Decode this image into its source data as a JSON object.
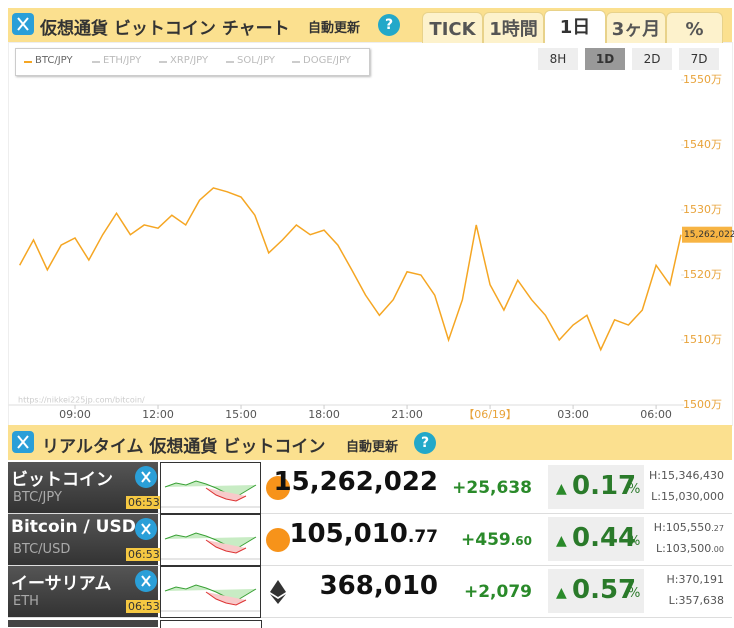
{
  "header": {
    "title": "仮想通貨 ビットコイン チャート",
    "auto_update": "自動更新",
    "help": "?",
    "tabs": [
      "TICK",
      "1時間",
      "1日",
      "3ヶ月",
      "%"
    ]
  },
  "chart_data": {
    "type": "line",
    "series": [
      {
        "name": "BTC/JPY",
        "color": "#f5a623",
        "x": [
          7,
          7.5,
          8,
          8.5,
          9,
          9.5,
          10,
          10.5,
          11,
          11.5,
          12,
          12.5,
          13,
          13.5,
          14,
          14.5,
          15,
          15.5,
          16,
          16.5,
          17,
          17.5,
          18,
          18.5,
          19,
          19.5,
          20,
          20.5,
          21,
          21.5,
          22,
          22.5,
          23,
          23.5,
          24,
          24.5,
          25,
          25.5,
          26,
          26.5,
          27,
          27.5,
          28,
          28.5,
          29,
          29.5,
          30,
          30.5,
          30.9
        ],
        "values": [
          1521.5,
          1525.4,
          1520.8,
          1524.6,
          1525.7,
          1522.3,
          1526.2,
          1529.5,
          1526.2,
          1527.7,
          1527.2,
          1529.2,
          1527.7,
          1531.5,
          1533.4,
          1532.8,
          1532,
          1529.2,
          1523.4,
          1525.4,
          1527.7,
          1526.2,
          1526.9,
          1524.6,
          1520.8,
          1516.9,
          1513.8,
          1516.2,
          1520.5,
          1520,
          1516.9,
          1510,
          1516.2,
          1527.7,
          1518.5,
          1514.6,
          1519.2,
          1516.2,
          1513.8,
          1510,
          1512.3,
          1513.8,
          1508.5,
          1513.1,
          1512.3,
          1514.6,
          1521.5,
          1518.5,
          1526.2
        ]
      }
    ],
    "hidden_series": [
      "ETH/JPY",
      "XRP/JPY",
      "SOL/JPY",
      "DOGE/JPY"
    ],
    "range_buttons": [
      "8H",
      "1D",
      "2D",
      "7D"
    ],
    "xlim": [
      6.6,
      30.9
    ],
    "xticks": [
      {
        "value": 9,
        "label": "09:00"
      },
      {
        "value": 12,
        "label": "12:00"
      },
      {
        "value": 15,
        "label": "15:00"
      },
      {
        "value": 18,
        "label": "18:00"
      },
      {
        "value": 21,
        "label": "21:00"
      },
      {
        "value": 24,
        "label": "【06/19】"
      },
      {
        "value": 27,
        "label": "03:00"
      },
      {
        "value": 30,
        "label": "06:00"
      }
    ],
    "ylim": [
      1500,
      1550
    ],
    "yticks": [
      {
        "value": 1500,
        "label": "1500万"
      },
      {
        "value": 1510,
        "label": "1510万"
      },
      {
        "value": 1520,
        "label": "1520万"
      },
      {
        "value": 1530,
        "label": "1530万"
      },
      {
        "value": 1540,
        "label": "1540万"
      },
      {
        "value": 1550,
        "label": "1550万"
      }
    ],
    "last_label": "15,262,022",
    "watermark": "https://nikkei225jp.com/bitcoin/"
  },
  "ticker": {
    "title": "リアルタイム 仮想通貨 ビットコイン",
    "auto_update": "自動更新",
    "help": "?",
    "rows": [
      {
        "name": "ビットコイン",
        "pair": "BTC/JPY",
        "time": "06:53",
        "price": "15,262,022",
        "price_dec": "",
        "change": "+25,638",
        "change_dec": "",
        "arrow": "▲",
        "percent": "0.17",
        "unit": "%",
        "high": "H:15,346,430",
        "high_dec": "",
        "low": "L:15,030,000",
        "low_dec": ""
      },
      {
        "name": "Bitcoin / USD",
        "pair": "BTC/USD",
        "time": "06:53",
        "price": "105,010",
        "price_dec": ".77",
        "change": "+459",
        "change_dec": ".60",
        "arrow": "▲",
        "percent": "0.44",
        "unit": "%",
        "high": "H:105,550",
        "high_dec": ".27",
        "low": "L:103,500",
        "low_dec": ".00"
      },
      {
        "name": "イーサリアム",
        "pair": "ETH",
        "time": "06:53",
        "price": "368,010",
        "price_dec": "",
        "change": "+2,079",
        "change_dec": "",
        "arrow": "▲",
        "percent": "0.57",
        "unit": "%",
        "high": "H:370,191",
        "high_dec": "",
        "low": "L:357,638",
        "low_dec": ""
      }
    ]
  }
}
